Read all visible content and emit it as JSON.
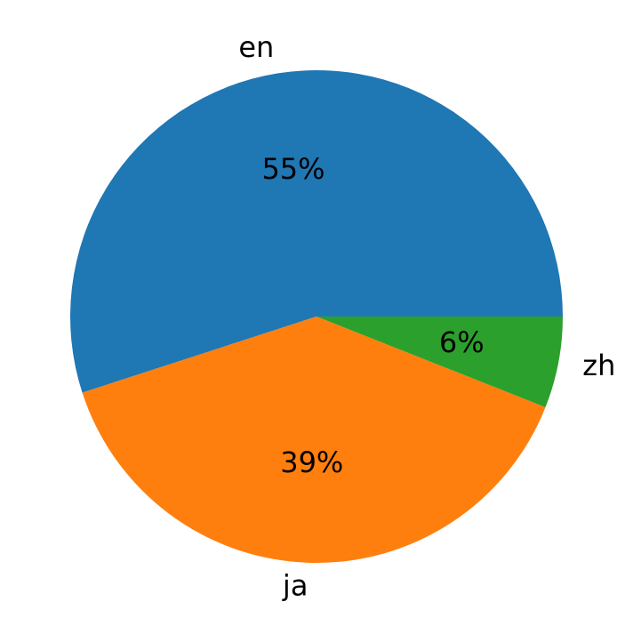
{
  "chart_data": {
    "type": "pie",
    "categories": [
      "en",
      "ja",
      "zh"
    ],
    "values": [
      55,
      39,
      6
    ],
    "value_labels": [
      "55%",
      "39%",
      "6%"
    ],
    "colors": [
      "#1f77b4",
      "#ff7f0e",
      "#2ca02c"
    ]
  }
}
